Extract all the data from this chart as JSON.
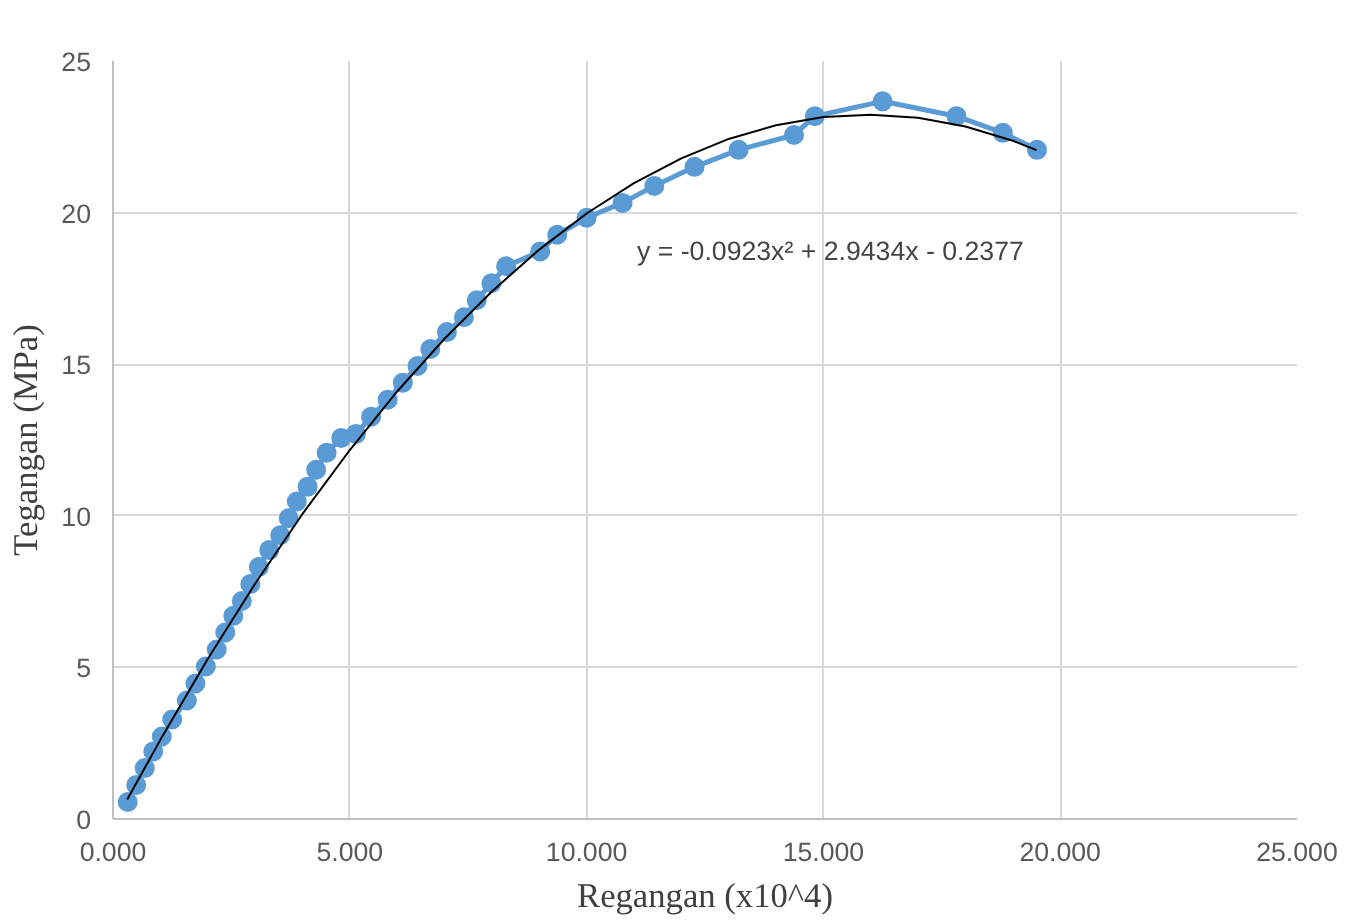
{
  "chart_data": {
    "type": "line",
    "xlabel": "Regangan (x10^4)",
    "ylabel": "Tegangan (MPa)",
    "xlim": [
      0,
      25
    ],
    "xticks": [
      {
        "value": 0,
        "label": "0.000"
      },
      {
        "value": 5,
        "label": "5.000"
      },
      {
        "value": 10,
        "label": "10.000"
      },
      {
        "value": 15,
        "label": "15.000"
      },
      {
        "value": 20,
        "label": "20.000"
      },
      {
        "value": 25,
        "label": "25.000"
      }
    ],
    "ylim": [
      0,
      25
    ],
    "yticks": [
      0,
      5,
      10,
      15,
      20,
      25
    ],
    "grid": true,
    "marker": "circle",
    "series": [
      {
        "color": "#5b9bd5",
        "x": [
          0.31,
          0.49,
          0.67,
          0.85,
          1.03,
          1.25,
          1.56,
          1.74,
          1.96,
          2.19,
          2.37,
          2.54,
          2.72,
          2.9,
          3.08,
          3.3,
          3.53,
          3.71,
          3.88,
          4.11,
          4.29,
          4.51,
          4.82,
          5.13,
          5.45,
          5.8,
          6.12,
          6.43,
          6.7,
          7.05,
          7.41,
          7.68,
          7.99,
          8.3,
          9.02,
          9.38,
          10.0,
          10.76,
          11.43,
          12.28,
          13.21,
          14.38,
          14.82,
          16.25,
          17.81,
          18.79,
          19.51
        ],
        "values": [
          0.56,
          1.12,
          1.68,
          2.23,
          2.72,
          3.28,
          3.91,
          4.47,
          5.03,
          5.59,
          6.15,
          6.7,
          7.19,
          7.75,
          8.31,
          8.87,
          9.36,
          9.92,
          10.47,
          10.96,
          11.52,
          12.08,
          12.57,
          12.7,
          13.27,
          13.83,
          14.39,
          14.94,
          15.5,
          16.06,
          16.55,
          17.11,
          17.67,
          18.23,
          18.72,
          19.27,
          19.83,
          20.32,
          20.88,
          21.51,
          22.07,
          22.56,
          23.18,
          23.67,
          23.18,
          22.63,
          22.07
        ]
      },
      {
        "marker": "none",
        "color": "#000000",
        "x": [
          0.3,
          1,
          2,
          3,
          4,
          5,
          6,
          7,
          8,
          9,
          10,
          11,
          12,
          13,
          14,
          15,
          16,
          17,
          18,
          19,
          19.5
        ],
        "values": [
          0.64,
          2.61,
          5.28,
          7.76,
          10.06,
          12.17,
          14.1,
          15.84,
          17.4,
          18.78,
          19.97,
          20.97,
          21.79,
          22.43,
          22.88,
          23.15,
          23.23,
          23.13,
          22.84,
          22.37,
          22.06
        ]
      }
    ],
    "annotations": [
      "y = -0.0923x² + 2.9434x - 0.2377"
    ]
  }
}
